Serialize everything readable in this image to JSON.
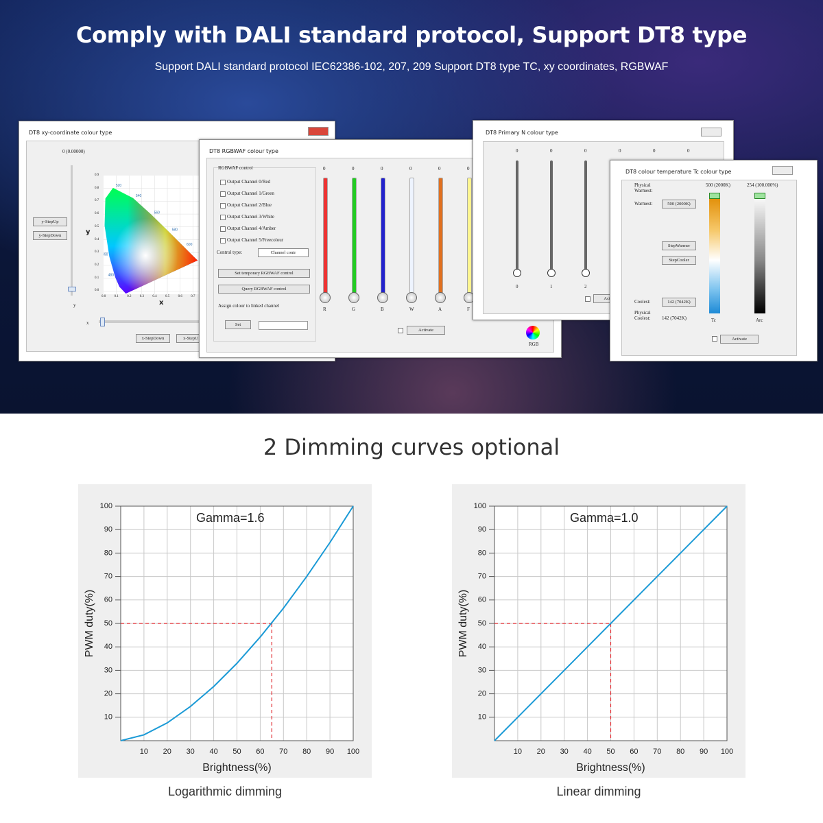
{
  "banner": {
    "title": "Comply with DALI standard protocol, Support DT8 type",
    "subtitle": "Support DALI standard protocol IEC62386-102, 207, 209 Support DT8 type TC, xy coordinates, RGBWAF"
  },
  "dialogs": [
    {
      "title": "DT8 xy-coordinate colour type",
      "value": "0 (0.00000)",
      "buttons": [
        "y-StepUp",
        "y-StepDown",
        "x-StepDown",
        "x-StepU"
      ],
      "axis_labels": [
        "x",
        "y"
      ],
      "slider_labels": [
        "y",
        "x"
      ],
      "yticks": [
        "0.9",
        "0.8",
        "0.7",
        "0.6",
        "0.5",
        "0.4",
        "0.3",
        "0.2",
        "0.1",
        "0.0"
      ],
      "xticks": [
        "0.0",
        "0.1",
        "0.2",
        "0.3",
        "0.4",
        "0.5",
        "0.6",
        "0.7"
      ],
      "wavelengths": [
        "480",
        "490",
        "500",
        "520",
        "540",
        "560",
        "580",
        "600"
      ]
    },
    {
      "title": "DT8 RGBWAF colour type",
      "group": "RGBWAF control",
      "channels": [
        "Output Channel 0/Red",
        "Output Channel 1/Green",
        "Output Channel 2/Blue",
        "Output Channel 3/White",
        "Output Channel 4/Amber",
        "Output Channel 5/Freecolour"
      ],
      "control_type_label": "Control type:",
      "control_type": "Channel contr",
      "buttons": [
        "Set temporary RGBWAF control",
        "Query RGBWAF control"
      ],
      "assign": "Assign colour to linked channel",
      "set": "Set",
      "activate": "Activate",
      "levels": [
        0,
        0,
        0,
        0,
        0,
        0
      ],
      "channel_letters": [
        "R",
        "G",
        "B",
        "W",
        "A",
        "F"
      ],
      "wheel": "RGB"
    },
    {
      "title": "DT8 Primary N colour type",
      "levels": [
        0,
        0,
        0,
        0,
        0,
        0
      ],
      "slider_labels": [
        0,
        1,
        2
      ],
      "activate": "Acti"
    },
    {
      "title": "DT8 colour temperature Tc colour type",
      "physical_warmest_label": "Physical Warmest:",
      "tc_top": "500 (2000K)",
      "arc_top": "254 (100.000%)",
      "warmest_label": "Warmest:",
      "warmest": "500 (2000K)",
      "buttons": [
        "StepWarmer",
        "StepCooler"
      ],
      "coolest_label": "Coolest:",
      "coolest": "142 (7042K)",
      "physical_coolest_label": "Physical Coolest:",
      "physical_coolest": "142 (7042K)",
      "bars": [
        "Tc",
        "Arc"
      ],
      "activate": "Activate"
    }
  ],
  "section_title": "2 Dimming curves optional",
  "chart_data": [
    {
      "type": "line",
      "annotation": "Gamma=1.6",
      "x_label": "Brightness(%)",
      "y_label": "PWM duty(%)",
      "x": [
        0,
        10,
        20,
        30,
        40,
        50,
        60,
        70,
        80,
        90,
        100
      ],
      "values": [
        0,
        2.5,
        7.6,
        14.6,
        23.1,
        33,
        44.2,
        56.5,
        70,
        84.5,
        100
      ],
      "color": "#1b9ad6",
      "xlim": [
        0,
        100
      ],
      "ylim": [
        0,
        100
      ],
      "xticks": [
        10,
        20,
        30,
        40,
        50,
        60,
        70,
        80,
        90,
        100
      ],
      "yticks": [
        10,
        20,
        30,
        40,
        50,
        60,
        70,
        80,
        90,
        100
      ],
      "grid": true,
      "guide": {
        "x": 65,
        "y": 50,
        "color": "#e0282e"
      },
      "caption": "Logarithmic dimming"
    },
    {
      "type": "line",
      "annotation": "Gamma=1.0",
      "x_label": "Brightness(%)",
      "y_label": "PWM duty(%)",
      "x": [
        0,
        10,
        20,
        30,
        40,
        50,
        60,
        70,
        80,
        90,
        100
      ],
      "values": [
        0,
        10,
        20,
        30,
        40,
        50,
        60,
        70,
        80,
        90,
        100
      ],
      "color": "#1b9ad6",
      "xlim": [
        0,
        100
      ],
      "ylim": [
        0,
        100
      ],
      "xticks": [
        10,
        20,
        30,
        40,
        50,
        60,
        70,
        80,
        90,
        100
      ],
      "yticks": [
        10,
        20,
        30,
        40,
        50,
        60,
        70,
        80,
        90,
        100
      ],
      "grid": true,
      "guide": {
        "x": 50,
        "y": 50,
        "color": "#e0282e"
      },
      "caption": "Linear dimming"
    }
  ]
}
